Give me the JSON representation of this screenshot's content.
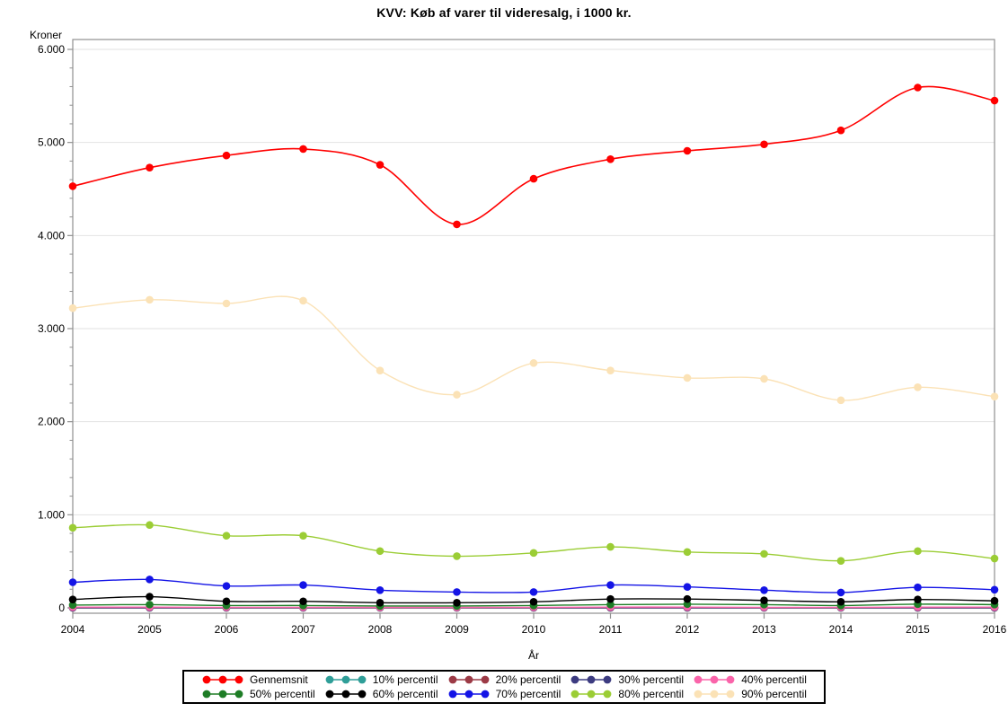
{
  "chart_data": {
    "type": "line",
    "title": "KVV: Køb af varer til videresalg, i 1000 kr.",
    "ylabel": "Kroner",
    "xlabel": "År",
    "x": [
      2004,
      2005,
      2006,
      2007,
      2008,
      2009,
      2010,
      2011,
      2012,
      2013,
      2014,
      2015,
      2016
    ],
    "ylim": [
      0,
      6000
    ],
    "ytick_values": [
      0,
      1000,
      2000,
      3000,
      4000,
      5000,
      6000
    ],
    "ytick_labels": [
      "0",
      "1.000",
      "2.000",
      "3.000",
      "4.000",
      "5.000",
      "6.000"
    ],
    "y_minor_tick_step": 200,
    "grid": "horizontal-major-only",
    "legend_position": "bottom-center-boxed",
    "legend_rows": 2,
    "series": [
      {
        "name": "Gennemsnit",
        "color": "#ff0000",
        "values": [
          4530,
          4730,
          4860,
          4930,
          4760,
          4120,
          4610,
          4820,
          4910,
          4980,
          5130,
          5590,
          5450
        ]
      },
      {
        "name": "10% percentil",
        "color": "#2f9e98",
        "values": [
          0,
          0,
          0,
          0,
          0,
          0,
          0,
          0,
          0,
          0,
          0,
          0,
          0
        ]
      },
      {
        "name": "20% percentil",
        "color": "#9c3a46",
        "values": [
          0,
          0,
          0,
          0,
          0,
          0,
          0,
          0,
          0,
          0,
          0,
          0,
          0
        ]
      },
      {
        "name": "30% percentil",
        "color": "#3c3b80",
        "values": [
          2,
          2,
          2,
          2,
          2,
          2,
          2,
          2,
          2,
          2,
          2,
          2,
          2
        ]
      },
      {
        "name": "40% percentil",
        "color": "#fa64aa",
        "values": [
          8,
          8,
          6,
          6,
          5,
          5,
          6,
          8,
          8,
          6,
          6,
          8,
          8
        ]
      },
      {
        "name": "50% percentil",
        "color": "#1e7d26",
        "values": [
          30,
          35,
          25,
          25,
          20,
          20,
          25,
          35,
          40,
          35,
          25,
          40,
          35
        ]
      },
      {
        "name": "60% percentil",
        "color": "#000000",
        "values": [
          90,
          120,
          70,
          70,
          55,
          55,
          65,
          95,
          95,
          80,
          65,
          90,
          75
        ]
      },
      {
        "name": "70% percentil",
        "color": "#1414e6",
        "values": [
          275,
          305,
          235,
          245,
          190,
          170,
          170,
          245,
          225,
          190,
          165,
          220,
          195
        ]
      },
      {
        "name": "80% percentil",
        "color": "#9bcd35",
        "values": [
          860,
          890,
          775,
          775,
          610,
          555,
          590,
          655,
          600,
          580,
          505,
          610,
          530
        ]
      },
      {
        "name": "90% percentil",
        "color": "#fbe2b6",
        "values": [
          3220,
          3310,
          3270,
          3300,
          2550,
          2290,
          2630,
          2550,
          2470,
          2460,
          2230,
          2370,
          2270
        ]
      }
    ],
    "frame_color": "#909090",
    "gridline_color": "#e2e2e2",
    "marker_radius": 4.3
  }
}
